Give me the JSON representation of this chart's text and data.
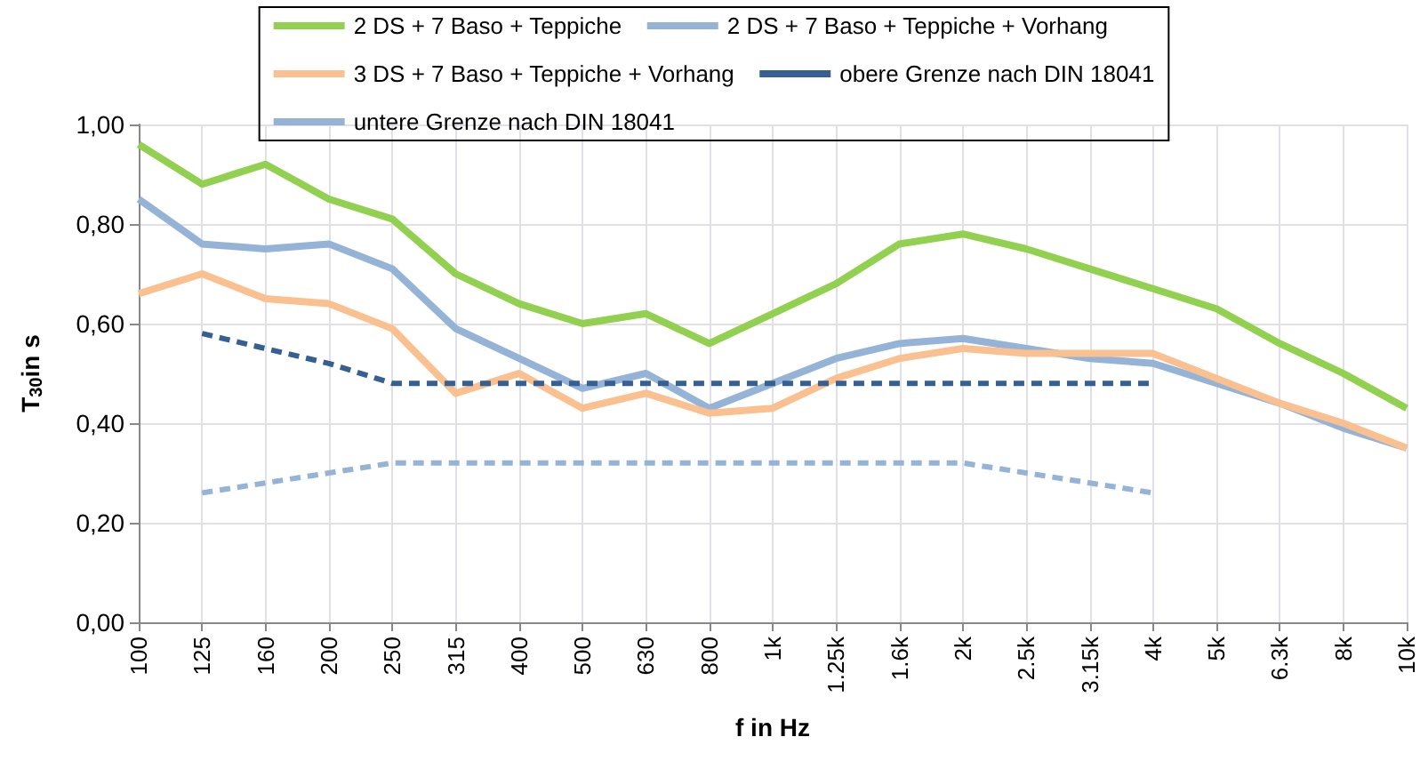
{
  "chart_data": {
    "type": "line",
    "xlabel": "f in Hz",
    "ylabel": "T$_{30}$in s",
    "categories": [
      "100",
      "125",
      "160",
      "200",
      "250",
      "315",
      "400",
      "500",
      "630",
      "800",
      "1k",
      "1.25k",
      "1.6k",
      "2k",
      "2.5k",
      "3.15k",
      "4k",
      "5k",
      "6.3k",
      "8k",
      "10k"
    ],
    "series": [
      {
        "name": "2 DS + 7 Baso + Teppiche",
        "color": "#92d050",
        "line_style": "solid",
        "values": [
          0.96,
          0.88,
          0.92,
          0.85,
          0.81,
          0.7,
          0.64,
          0.6,
          0.62,
          0.56,
          0.62,
          0.68,
          0.76,
          0.78,
          0.75,
          0.71,
          0.67,
          0.63,
          0.56,
          0.5,
          0.43
        ]
      },
      {
        "name": "2 DS + 7 Baso + Teppiche + Vorhang",
        "color": "#95b3d7",
        "line_style": "solid",
        "values": [
          0.85,
          0.76,
          0.75,
          0.76,
          0.71,
          0.59,
          0.53,
          0.47,
          0.5,
          0.43,
          0.48,
          0.53,
          0.56,
          0.57,
          0.55,
          0.53,
          0.52,
          0.48,
          0.44,
          0.39,
          0.35
        ]
      },
      {
        "name": "3 DS + 7 Baso + Teppiche + Vorhang",
        "color": "#fac090",
        "line_style": "solid",
        "values": [
          0.66,
          0.7,
          0.65,
          0.64,
          0.59,
          0.46,
          0.5,
          0.43,
          0.46,
          0.42,
          0.43,
          0.49,
          0.53,
          0.55,
          0.54,
          0.54,
          0.54,
          0.49,
          0.44,
          0.4,
          0.35
        ]
      },
      {
        "name": "obere Grenze nach DIN 18041",
        "color": "#366092",
        "line_style": "dashed",
        "values": [
          null,
          0.58,
          0.55,
          0.52,
          0.48,
          0.48,
          0.48,
          0.48,
          0.48,
          0.48,
          0.48,
          0.48,
          0.48,
          0.48,
          0.48,
          0.48,
          0.48,
          null,
          null,
          null,
          null
        ]
      },
      {
        "name": "untere Grenze nach DIN 18041",
        "color": "#95b3d7",
        "line_style": "dashed",
        "values": [
          null,
          0.26,
          0.28,
          0.3,
          0.32,
          0.32,
          0.32,
          0.32,
          0.32,
          0.32,
          0.32,
          0.32,
          0.32,
          0.32,
          0.3,
          0.28,
          0.26,
          null,
          null,
          null,
          null
        ]
      }
    ],
    "ylim": [
      0,
      1
    ],
    "yticks": [
      {
        "value": 0,
        "label": "0,00"
      },
      {
        "value": 0.2,
        "label": "0,20"
      },
      {
        "value": 0.4,
        "label": "0,40"
      },
      {
        "value": 0.6,
        "label": "0,60"
      },
      {
        "value": 0.8,
        "label": "0,80"
      },
      {
        "value": 1,
        "label": "1,00"
      }
    ],
    "grid": true,
    "legend": "top",
    "marker": "none"
  }
}
